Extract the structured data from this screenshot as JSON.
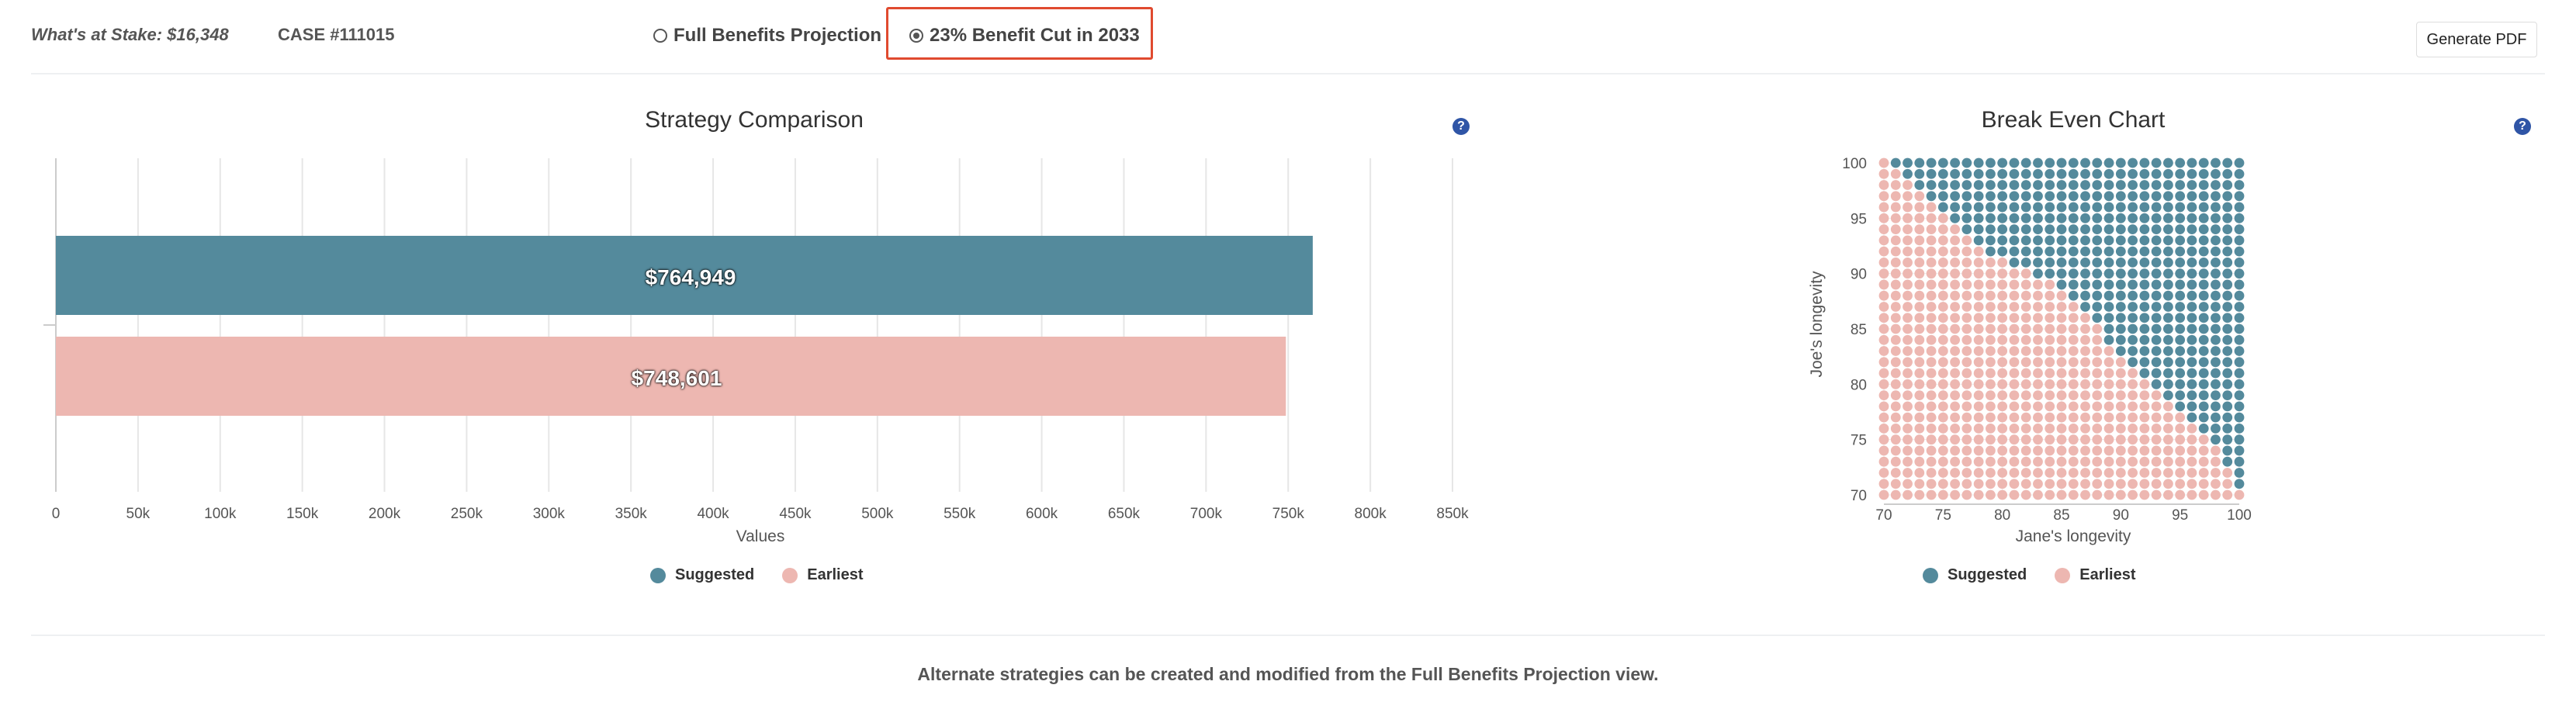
{
  "header": {
    "stake_text": "What's at Stake: $16,348",
    "case_text": "CASE #111015",
    "radio_full_label": "Full Benefits Projection",
    "radio_cut_label": "23% Benefit Cut in 2033",
    "selected_radio": "23% Benefit Cut in 2033",
    "generate_pdf_label": "Generate PDF"
  },
  "colors": {
    "suggested": "#548a9c",
    "earliest": "#edb7b1",
    "highlight_border": "#e04a2f",
    "help_icon": "#2f55a6"
  },
  "strategy_chart": {
    "help_label": "?",
    "legend": [
      {
        "name": "Suggested",
        "color": "#548a9c"
      },
      {
        "name": "Earliest",
        "color": "#edb7b1"
      }
    ],
    "value_labels": [
      "$764,949",
      "$748,601"
    ]
  },
  "breakeven_chart": {
    "help_label": "?",
    "legend": [
      {
        "name": "Suggested",
        "color": "#548a9c"
      },
      {
        "name": "Earliest",
        "color": "#edb7b1"
      }
    ]
  },
  "chart_data": [
    {
      "type": "bar",
      "orientation": "horizontal",
      "title": "Strategy Comparison",
      "xlabel": "Values",
      "ylabel": "",
      "xlim": [
        0,
        850000
      ],
      "x_ticks": [
        0,
        50000,
        100000,
        150000,
        200000,
        250000,
        300000,
        350000,
        400000,
        450000,
        500000,
        550000,
        600000,
        650000,
        700000,
        750000,
        800000,
        850000
      ],
      "x_tick_labels": [
        "0",
        "50k",
        "100k",
        "150k",
        "200k",
        "250k",
        "300k",
        "350k",
        "400k",
        "450k",
        "500k",
        "550k",
        "600k",
        "650k",
        "700k",
        "750k",
        "800k",
        "850k"
      ],
      "series": [
        {
          "name": "Suggested",
          "values": [
            764949
          ],
          "label": "$764,949"
        },
        {
          "name": "Earliest",
          "values": [
            748601
          ],
          "label": "$748,601"
        }
      ],
      "grid": true,
      "legend_position": "bottom"
    },
    {
      "type": "scatter",
      "title": "Break Even Chart",
      "xlabel": "Jane's longevity",
      "ylabel": "Joe's longevity",
      "xlim": [
        70,
        100
      ],
      "ylim": [
        70,
        100
      ],
      "x_ticks": [
        70,
        75,
        80,
        85,
        90,
        95,
        100
      ],
      "y_ticks": [
        70,
        75,
        80,
        85,
        90,
        95,
        100
      ],
      "grid": true,
      "legend_position": "bottom",
      "series": [
        {
          "name": "Suggested",
          "rule": "points above the boundary (y > boundary at x)"
        },
        {
          "name": "Earliest",
          "rule": "points on or below the boundary"
        }
      ],
      "boundary_x": [
        70,
        71,
        72,
        73,
        74,
        75,
        76,
        77,
        78,
        79,
        80,
        81,
        82,
        83,
        84,
        85,
        86,
        87,
        88,
        89,
        90,
        91,
        92,
        93,
        94,
        95,
        96,
        97,
        98,
        99,
        100
      ],
      "boundary_y": [
        100,
        99,
        98,
        97,
        96,
        95,
        94,
        93,
        92,
        91,
        91,
        90,
        90,
        89,
        89,
        88,
        87,
        86,
        85,
        83,
        82,
        81,
        80,
        79,
        78,
        77,
        76,
        75,
        74,
        72,
        70
      ]
    }
  ],
  "footer": {
    "note": "Alternate strategies can be created and modified from the Full Benefits Projection view."
  }
}
